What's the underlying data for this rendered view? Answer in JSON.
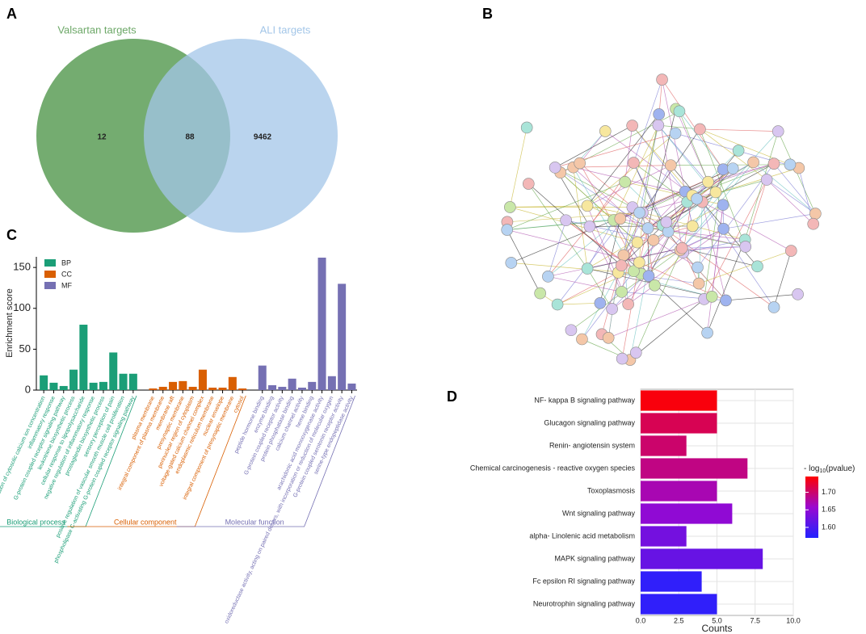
{
  "chart_data": [
    {
      "type": "venn",
      "panel": "A",
      "sets": [
        {
          "name": "Valsartan targets",
          "color": "#6da868",
          "only": 12
        },
        {
          "name": "ALI targets",
          "color": "#a3c6e8",
          "only": 9462
        }
      ],
      "intersection": 88
    },
    {
      "type": "network",
      "panel": "B"
    },
    {
      "type": "bar",
      "panel": "C",
      "ylabel": "Enrichment score",
      "ylim": [
        0,
        163
      ],
      "yticks": [
        0,
        50,
        100,
        150
      ],
      "series": [
        {
          "name": "BP",
          "group_label": "Biological process",
          "color": "#1b9e77",
          "categories": [
            "positive regulation of cytosolic calcium ion concentration",
            "inflammatory response",
            "G-protein coupled receptor signaling pathway",
            "leukotriene biosynthetic process",
            "cellular response to lipopolysaccharide",
            "negative regulation of inflammatory response",
            "prostaglandin biosynthetic process",
            "sensory perception of pain",
            "positive regulation of vascular smooth muscle cell proliferation",
            "phospholipase C-activating G-protein coupled receptor signaling pathway"
          ],
          "values": [
            18,
            9,
            5,
            25,
            80,
            9,
            10,
            46,
            20,
            20
          ]
        },
        {
          "name": "CC",
          "group_label": "Cellular component",
          "color": "#d95f02",
          "categories": [
            "plasma membrane",
            "integral component of plasma membrane",
            "membrane raft",
            "presynaptic membrane",
            "perinuclear region of cytoplasm",
            "voltage-gated calcium channel complex",
            "endoplasmic reticulum membrane",
            "nuclear envelope",
            "integral component of presynaptic membrane",
            "cytosol"
          ],
          "values": [
            2,
            4,
            10,
            11,
            4,
            25,
            3,
            3,
            16,
            2
          ]
        },
        {
          "name": "MF",
          "group_label": "Molecular function",
          "color": "#7570b3",
          "categories": [
            "peptide hormone binding",
            "enzyme binding",
            "G-protein coupled receptor activity",
            "protein phosphatase binding",
            "calcium channel activity",
            "heme binding",
            "arachidonic acid monooxygenase activity",
            "oxidoreductase activity, acting on paired donors, with incorporation or reduction of molecular oxygen",
            "G-protein coupled serotonin receptor activity",
            "serine-type endopeptidase activity"
          ],
          "values": [
            30,
            6,
            4,
            14,
            3,
            10,
            162,
            17,
            130,
            8
          ]
        }
      ]
    },
    {
      "type": "hbar",
      "panel": "D",
      "xlabel": "Counts",
      "categories": [
        "NF- kappa B signaling pathway",
        "Glucagon signaling pathway",
        "Renin- angiotensin system",
        "Chemical carcinogenesis - reactive oxygen species",
        "Toxoplasmosis",
        "Wnt signaling pathway",
        "alpha- Linolenic acid metabolism",
        "MAPK signaling pathway",
        "Fc epsilon RI signaling pathway",
        "Neurotrophin signaling pathway"
      ],
      "values": [
        5,
        5,
        3,
        7,
        5,
        6,
        3,
        8,
        4,
        5
      ],
      "color_values": [
        1.74,
        1.71,
        1.7,
        1.69,
        1.67,
        1.65,
        1.63,
        1.62,
        1.58,
        1.58
      ],
      "colorbar": {
        "title": [
          "- log",
          "10",
          "(pvalue)"
        ],
        "lim": [
          1.57,
          1.745
        ],
        "colors": [
          "#2222ff",
          "#9a08d0",
          "#ff0000"
        ],
        "ticks": [
          {
            "value": 1.6,
            "label": "1.60"
          },
          {
            "value": 1.65,
            "label": "1.65"
          },
          {
            "value": 1.7,
            "label": "1.70"
          }
        ]
      },
      "xlim": [
        0,
        10
      ],
      "xticks": [
        {
          "value": 0,
          "label": "0.0"
        },
        {
          "value": 2.5,
          "label": "2.5"
        },
        {
          "value": 5,
          "label": "5.0"
        },
        {
          "value": 7.5,
          "label": "7.5"
        },
        {
          "value": 10,
          "label": "10.0"
        }
      ],
      "grid": true
    }
  ]
}
